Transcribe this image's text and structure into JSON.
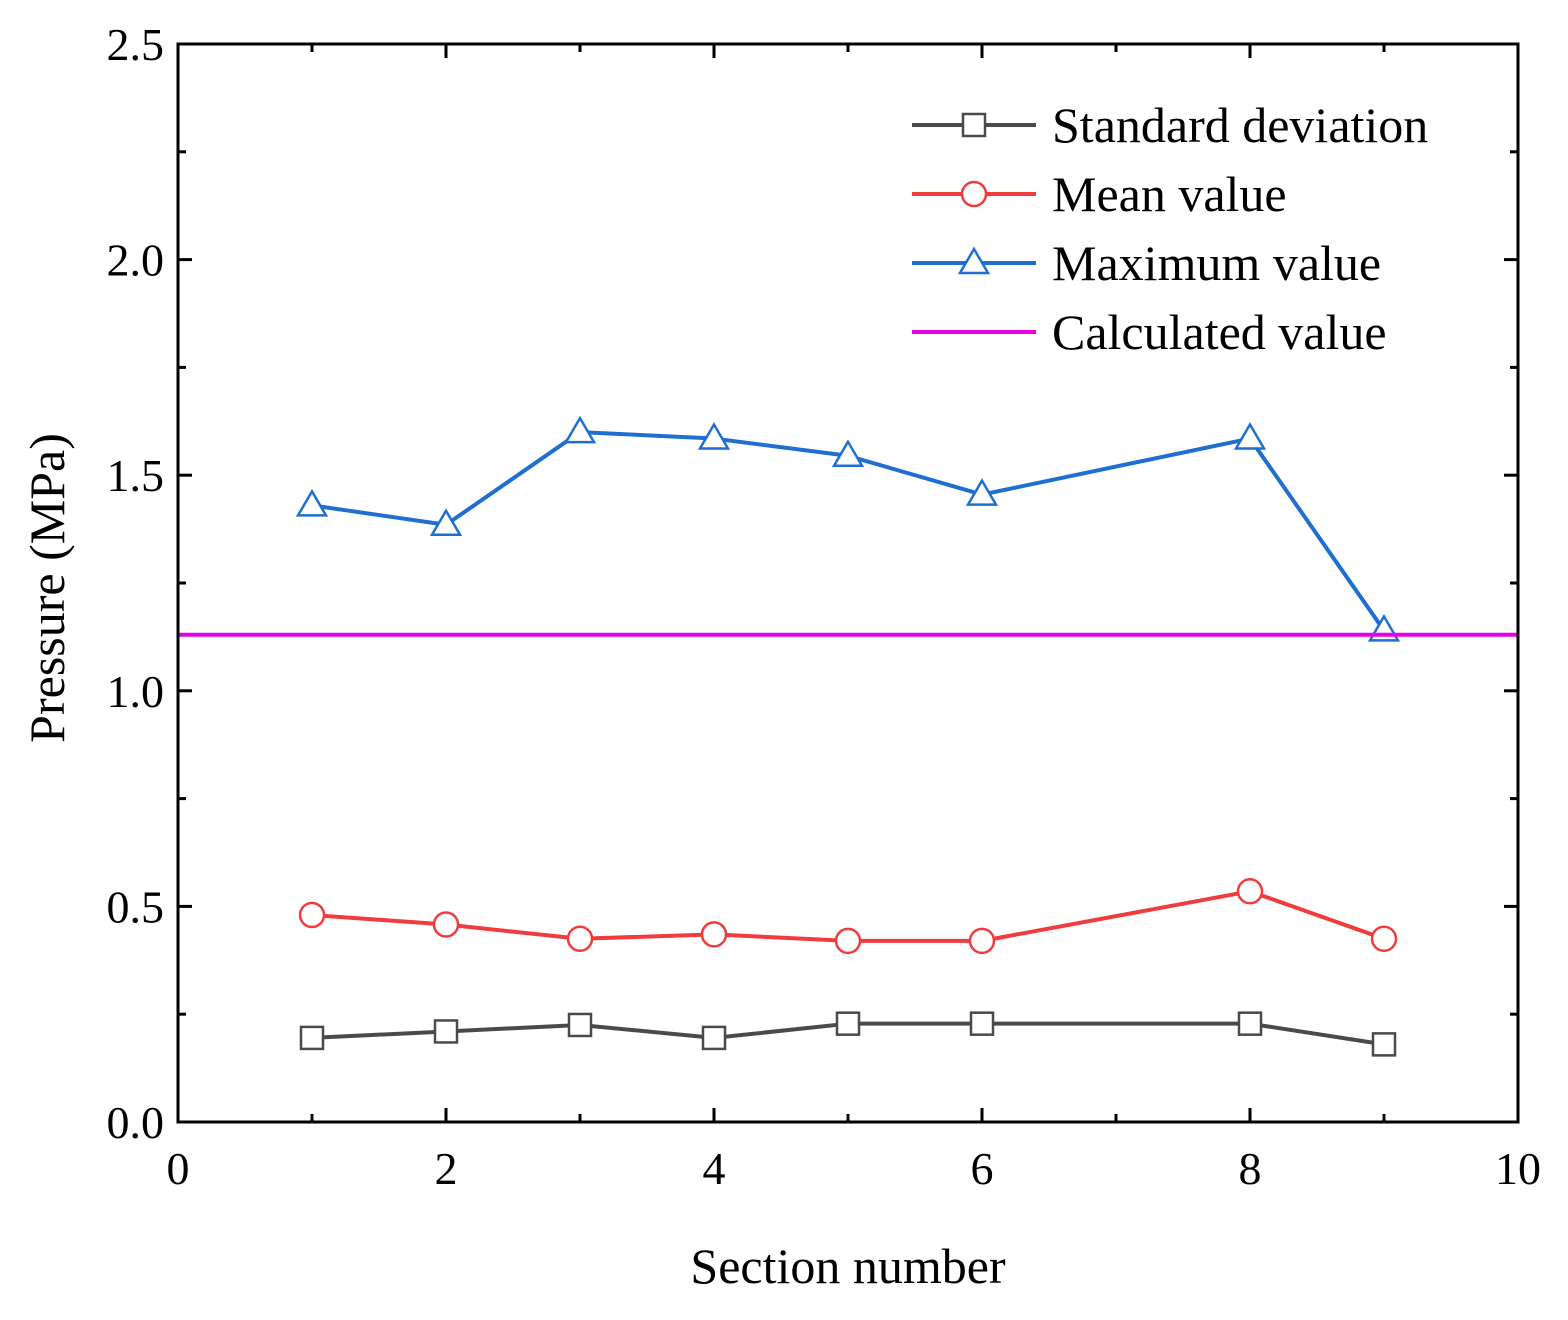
{
  "chart_data": {
    "type": "line",
    "title": "",
    "xlabel": "Section number",
    "ylabel": "Pressure (MPa)",
    "xlim": [
      0,
      10
    ],
    "ylim": [
      0,
      2.5
    ],
    "x_major_ticks": [
      0,
      2,
      4,
      6,
      8,
      10
    ],
    "x_minor_ticks": [
      1,
      3,
      5,
      7,
      9
    ],
    "y_major_ticks": [
      0.0,
      0.5,
      1.0,
      1.5,
      2.0,
      2.5
    ],
    "y_minor_ticks": [
      0.25,
      0.75,
      1.25,
      1.75,
      2.25
    ],
    "x_tick_labels": [
      "0",
      "2",
      "4",
      "6",
      "8",
      "10"
    ],
    "y_tick_labels": [
      "0.0",
      "0.5",
      "1.0",
      "1.5",
      "2.0",
      "2.5"
    ],
    "grid": false,
    "legend_position": "top-right",
    "series": [
      {
        "name": "Standard deviation",
        "color": "#4a4a4a",
        "marker": "square",
        "x": [
          1,
          2,
          3,
          4,
          5,
          6,
          8,
          9
        ],
        "values": [
          0.195,
          0.21,
          0.225,
          0.195,
          0.228,
          0.228,
          0.228,
          0.18
        ]
      },
      {
        "name": "Mean value",
        "color": "#f03c3c",
        "marker": "circle",
        "x": [
          1,
          2,
          3,
          4,
          5,
          6,
          8,
          9
        ],
        "values": [
          0.48,
          0.458,
          0.425,
          0.435,
          0.42,
          0.42,
          0.535,
          0.425
        ]
      },
      {
        "name": "Maximum value",
        "color": "#1f6fd1",
        "marker": "triangle",
        "x": [
          1,
          2,
          3,
          4,
          5,
          6,
          8,
          9
        ],
        "values": [
          1.43,
          1.385,
          1.6,
          1.585,
          1.545,
          1.455,
          1.585,
          1.14
        ]
      },
      {
        "name": "Calculated value",
        "color": "#e800e8",
        "marker": "none",
        "type": "hline",
        "value": 1.13
      }
    ]
  }
}
